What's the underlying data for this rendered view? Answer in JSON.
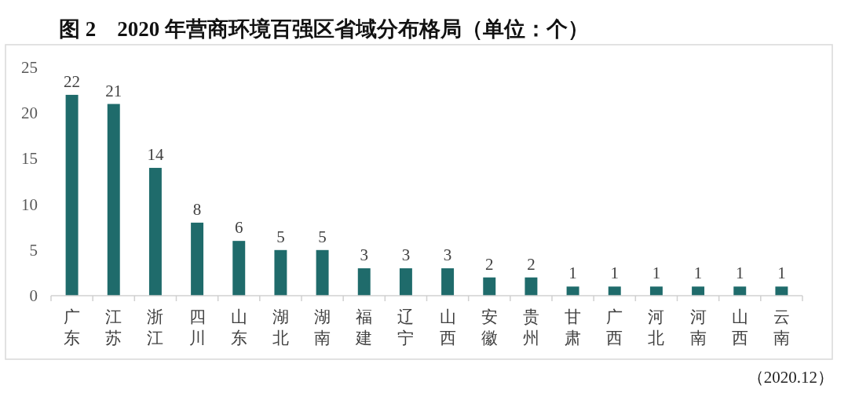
{
  "chart_data": {
    "type": "bar",
    "title": "图 2　2020 年营商环境百强区省域分布格局（单位：个）",
    "categories": [
      "广东",
      "江苏",
      "浙江",
      "四川",
      "山东",
      "湖北",
      "湖南",
      "福建",
      "辽宁",
      "山西",
      "安徽",
      "贵州",
      "甘肃",
      "广西",
      "河北",
      "河南",
      "山西",
      "云南"
    ],
    "values": [
      22,
      21,
      14,
      8,
      6,
      5,
      5,
      3,
      3,
      3,
      2,
      2,
      1,
      1,
      1,
      1,
      1,
      1
    ],
    "color": "#1f6b6b",
    "ylim": [
      0,
      25
    ],
    "yticks": [
      0,
      5,
      10,
      15,
      20,
      25
    ],
    "data_labels": true,
    "annotations": [
      "（2020.12）"
    ]
  }
}
